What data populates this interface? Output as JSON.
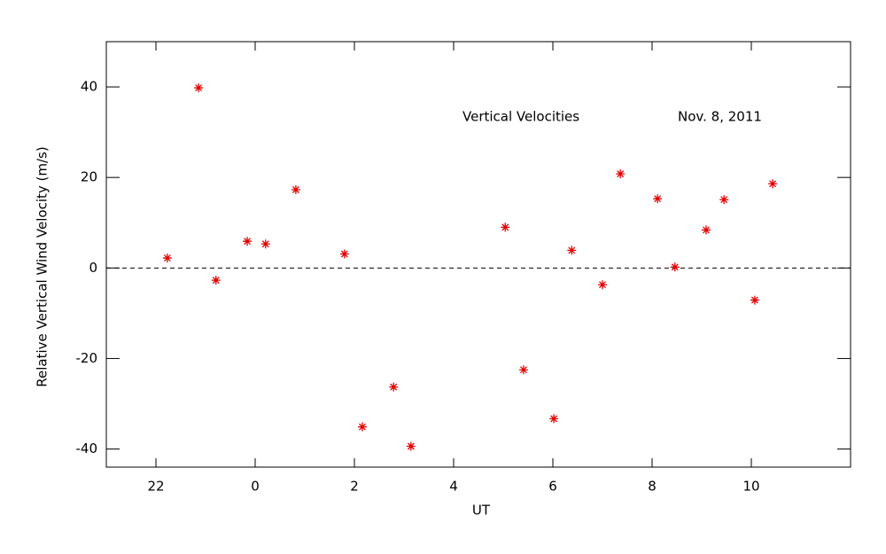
{
  "chart_data": {
    "type": "scatter",
    "xlabel": "UT",
    "ylabel": "Relative Vertical Wind Velocity (m/s)",
    "annotations": [
      "Vertical Velocities",
      "Nov. 8, 2011"
    ],
    "color": "#e00000",
    "reference_line": 0,
    "xlim": [
      -3,
      12
    ],
    "xticks": [
      {
        "value": -2,
        "label": "22"
      },
      0,
      2,
      4,
      6,
      8,
      10
    ],
    "ylim": [
      -44,
      50
    ],
    "yticks": [
      -40,
      -20,
      0,
      20,
      40
    ],
    "x": [
      -1.77,
      -1.14,
      -0.79,
      -0.16,
      0.21,
      0.82,
      1.8,
      2.16,
      2.79,
      3.14,
      5.04,
      5.41,
      6.02,
      6.38,
      7.0,
      7.36,
      8.11,
      8.46,
      9.09,
      9.45,
      10.07,
      10.43
    ],
    "values": [
      2.2,
      39.8,
      -2.7,
      5.9,
      5.3,
      17.3,
      3.1,
      -35.1,
      -26.3,
      -39.4,
      9.0,
      -22.5,
      -33.3,
      3.9,
      -3.7,
      20.8,
      15.3,
      0.2,
      8.4,
      15.1,
      -7.1,
      18.6
    ]
  }
}
